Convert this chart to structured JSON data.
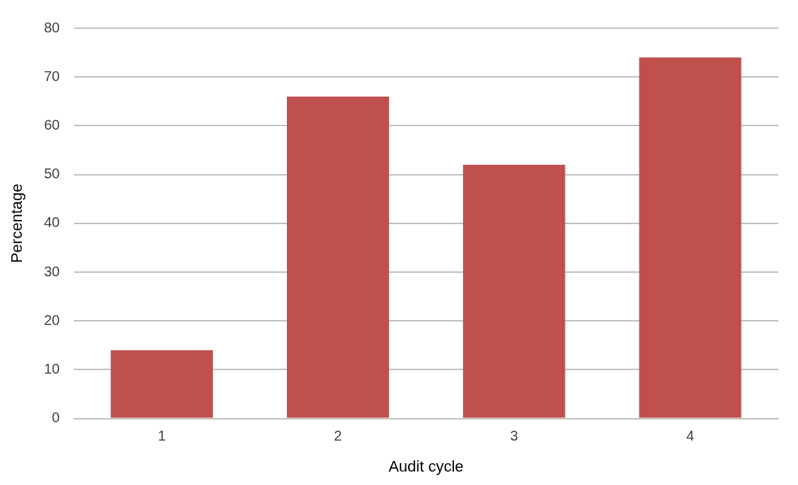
{
  "chart_data": {
    "type": "bar",
    "xlabel": "Audit cycle",
    "ylabel": "Percentage",
    "categories": [
      "1",
      "2",
      "3",
      "4"
    ],
    "values": [
      14,
      66,
      52,
      74
    ],
    "color": "#c0504d",
    "ylim": [
      0,
      80
    ],
    "yticks": [
      0,
      10,
      20,
      30,
      40,
      50,
      60,
      70,
      80
    ],
    "grid": "y",
    "legend": false
  }
}
